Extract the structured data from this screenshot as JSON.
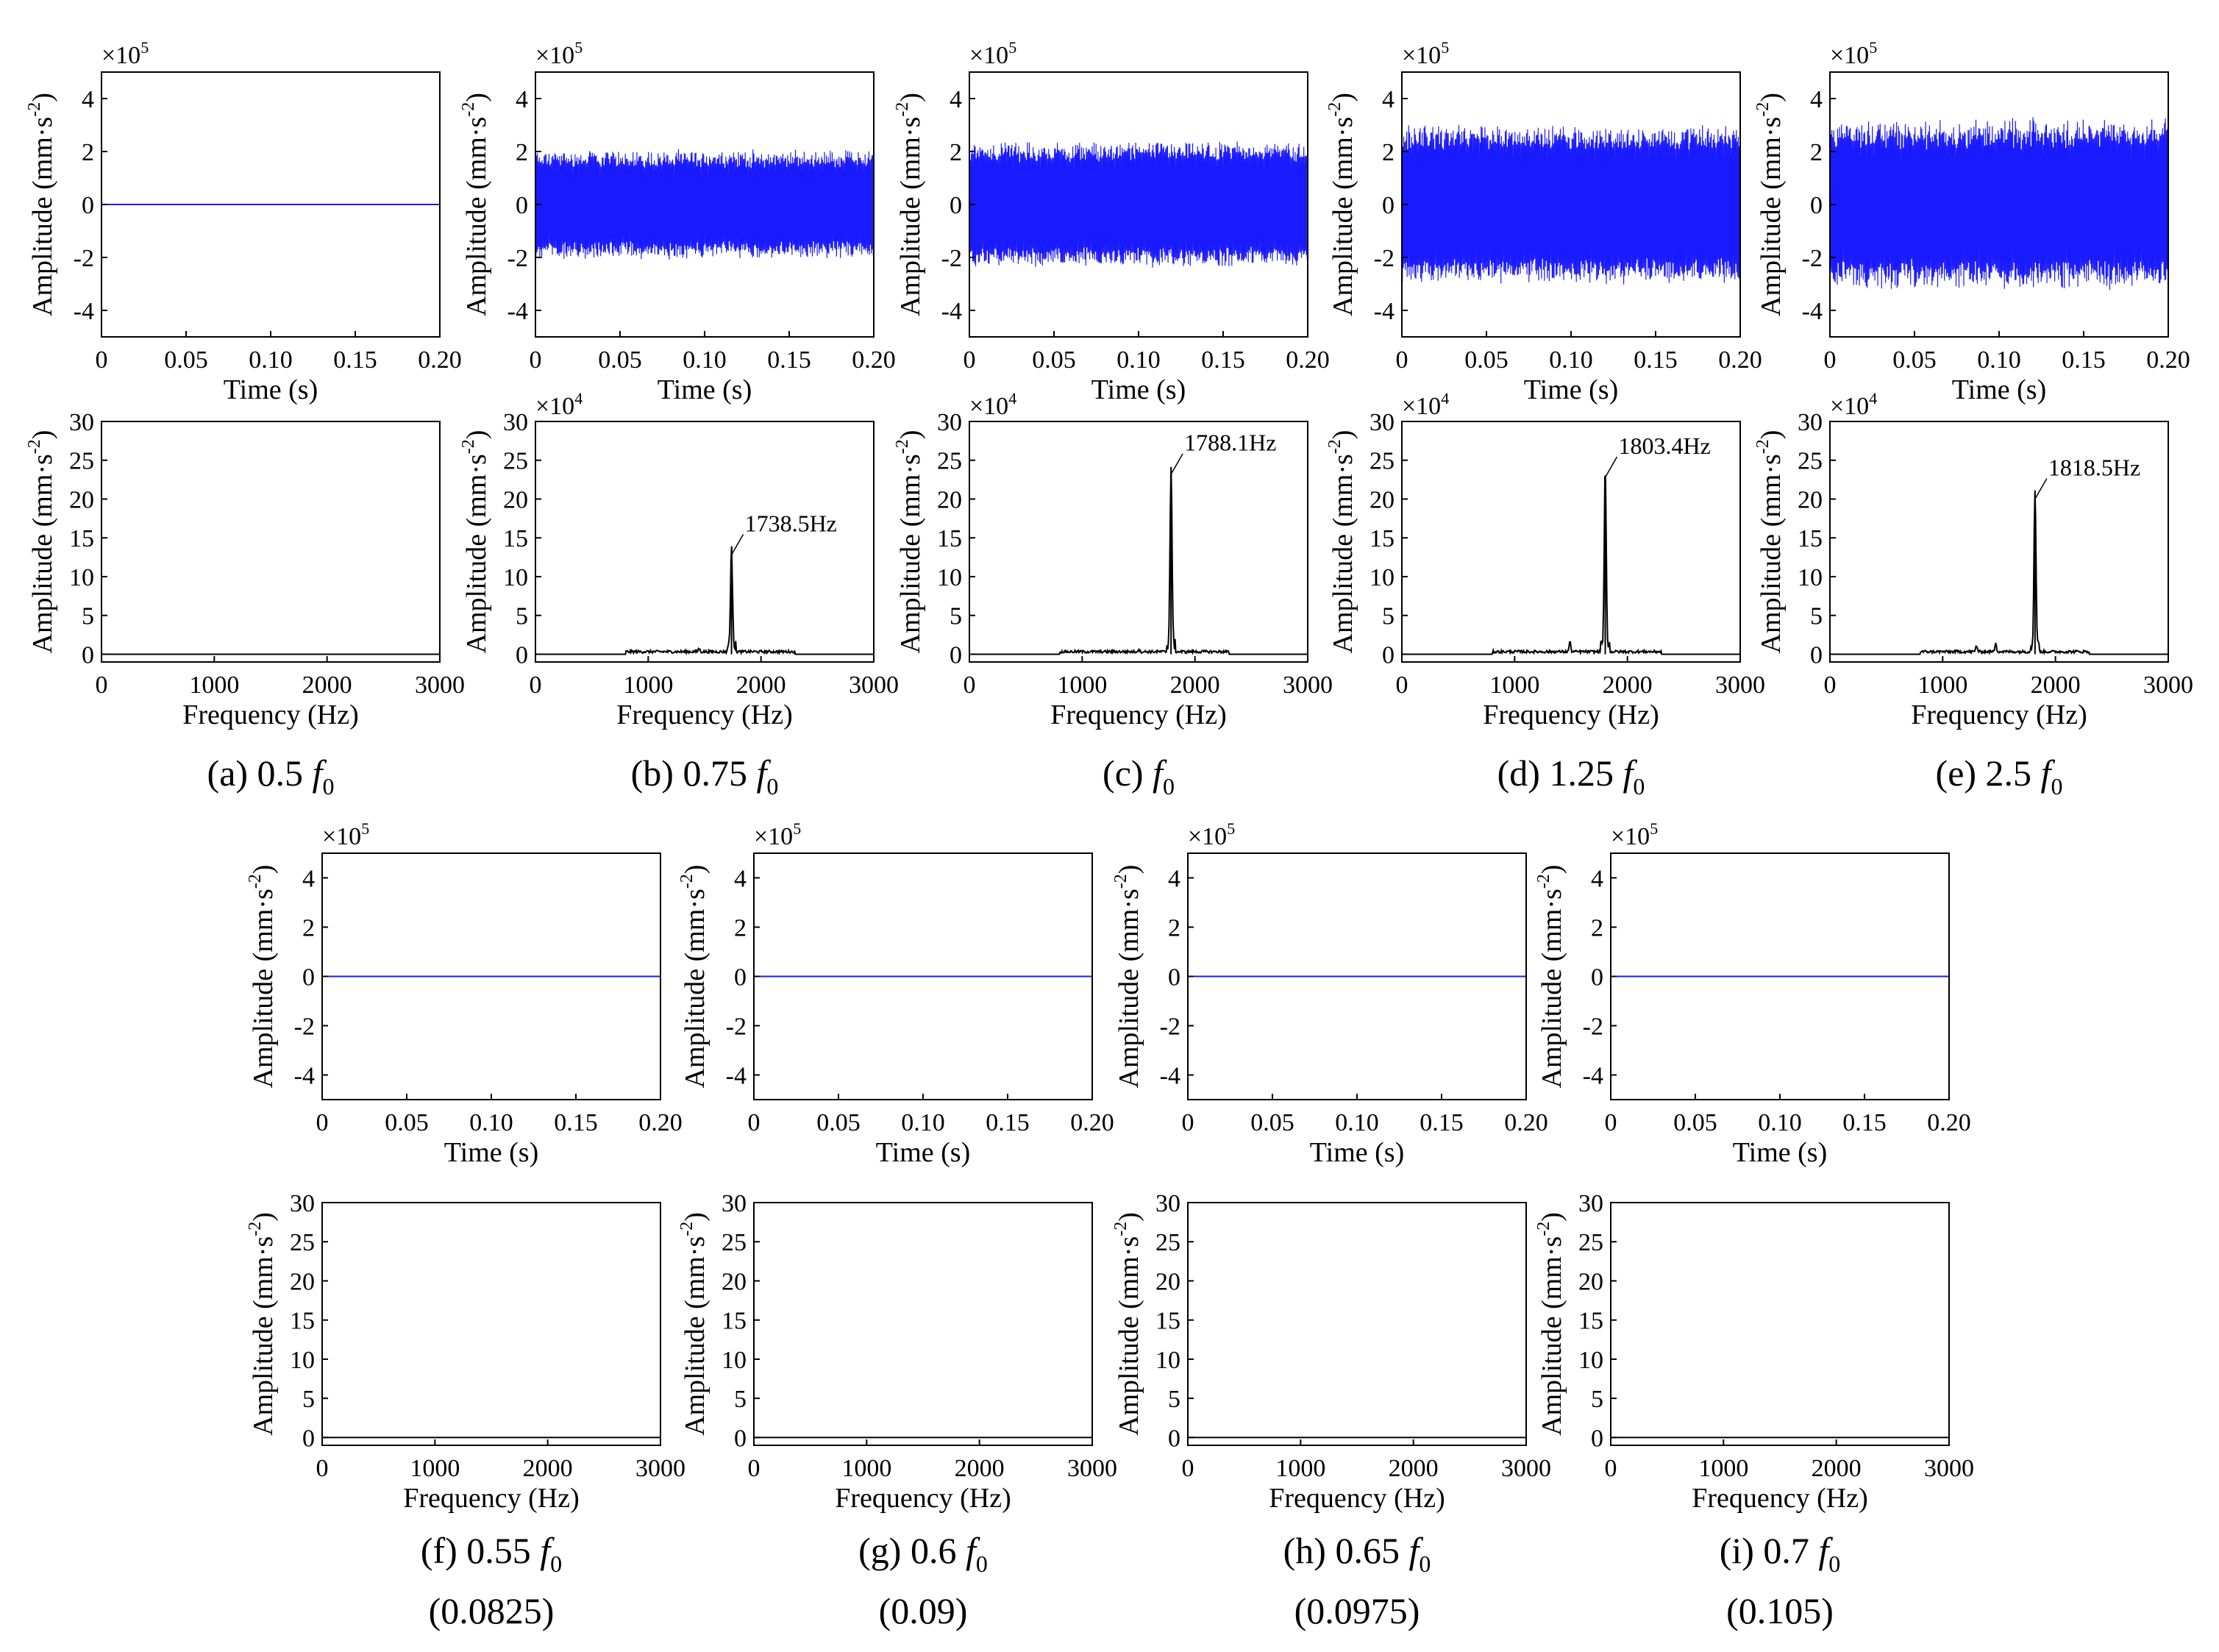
{
  "common": {
    "time_xlabel": "Time (s)",
    "freq_xlabel": "Frequency (Hz)",
    "ylabel_main": "Amplitude (mm·s",
    "ylabel_sup": "-2",
    "ylabel_close": ")",
    "time_multiplier": "×10",
    "time_exp": "5",
    "freq_multiplier": "×10",
    "freq_exp": "4",
    "time_xticks": [
      "0",
      "0.05",
      "0.10",
      "0.15",
      "0.20"
    ],
    "time_yticks": [
      "4",
      "2",
      "0",
      "-2",
      "-4"
    ],
    "freq_xticks": [
      "0",
      "1000",
      "2000",
      "3000"
    ],
    "freq_yticks": [
      "30",
      "25",
      "20",
      "15",
      "10",
      "5",
      "0"
    ]
  },
  "colors": {
    "time_signal": "#1a1aff",
    "spectrum": "#000000",
    "axes": "#000000"
  },
  "chart_data": [
    {
      "panel": "a",
      "type": "line",
      "signal": "time",
      "xlim": [
        0,
        0.2
      ],
      "ylim": [
        -5,
        5
      ],
      "amplitude": 0,
      "amp_noise": 0
    },
    {
      "panel": "a",
      "type": "line",
      "signal": "spectrum",
      "xlim": [
        0,
        3000
      ],
      "ylim": [
        -1,
        30
      ],
      "peaks": [],
      "show_multiplier": false
    },
    {
      "panel": "b",
      "type": "line",
      "signal": "time",
      "xlim": [
        0,
        0.2
      ],
      "ylim": [
        -5,
        5
      ],
      "amplitude": 1.9,
      "amp_noise": 0.3
    },
    {
      "panel": "b",
      "type": "line",
      "signal": "spectrum",
      "xlim": [
        0,
        3000
      ],
      "ylim": [
        -1,
        30
      ],
      "show_multiplier": true,
      "peaks": [
        {
          "x": 1738.5,
          "y": 12.8
        },
        {
          "x": 1450,
          "y": 0.4
        }
      ],
      "annotation": "1738.5Hz"
    },
    {
      "panel": "c",
      "type": "line",
      "signal": "time",
      "xlim": [
        0,
        0.2
      ],
      "ylim": [
        -5,
        5
      ],
      "amplitude": 2.2,
      "amp_noise": 0.3
    },
    {
      "panel": "c",
      "type": "line",
      "signal": "spectrum",
      "xlim": [
        0,
        3000
      ],
      "ylim": [
        -1,
        30
      ],
      "show_multiplier": true,
      "peaks": [
        {
          "x": 1788.1,
          "y": 23.2
        },
        {
          "x": 1500,
          "y": 0.3
        }
      ],
      "annotation": "1788.1Hz"
    },
    {
      "panel": "d",
      "type": "line",
      "signal": "time",
      "xlim": [
        0,
        0.2
      ],
      "ylim": [
        -5,
        5
      ],
      "amplitude": 2.8,
      "amp_noise": 0.35
    },
    {
      "panel": "d",
      "type": "line",
      "signal": "spectrum",
      "xlim": [
        0,
        3000
      ],
      "ylim": [
        -1,
        30
      ],
      "show_multiplier": true,
      "peaks": [
        {
          "x": 1803.4,
          "y": 22.8
        },
        {
          "x": 1490,
          "y": 1.3
        }
      ],
      "annotation": "1803.4Hz"
    },
    {
      "panel": "e",
      "type": "line",
      "signal": "time",
      "xlim": [
        0,
        0.2
      ],
      "ylim": [
        -5,
        5
      ],
      "amplitude": 2.9,
      "amp_noise": 0.6
    },
    {
      "panel": "e",
      "type": "line",
      "signal": "spectrum",
      "xlim": [
        0,
        3000
      ],
      "ylim": [
        -1,
        30
      ],
      "show_multiplier": true,
      "peaks": [
        {
          "x": 1818.5,
          "y": 20.0
        },
        {
          "x": 1300,
          "y": 0.8
        },
        {
          "x": 1470,
          "y": 1.2
        }
      ],
      "annotation": "1818.5Hz"
    },
    {
      "panel": "f",
      "type": "line",
      "signal": "time",
      "xlim": [
        0,
        0.2
      ],
      "ylim": [
        -5,
        5
      ],
      "amplitude": 0,
      "amp_noise": 0
    },
    {
      "panel": "f",
      "type": "line",
      "signal": "spectrum",
      "xlim": [
        0,
        3000
      ],
      "ylim": [
        -1,
        30
      ],
      "peaks": [],
      "show_multiplier": false
    },
    {
      "panel": "g",
      "type": "line",
      "signal": "time",
      "xlim": [
        0,
        0.2
      ],
      "ylim": [
        -5,
        5
      ],
      "amplitude": 0,
      "amp_noise": 0
    },
    {
      "panel": "g",
      "type": "line",
      "signal": "spectrum",
      "xlim": [
        0,
        3000
      ],
      "ylim": [
        -1,
        30
      ],
      "peaks": [],
      "show_multiplier": false
    },
    {
      "panel": "h",
      "type": "line",
      "signal": "time",
      "xlim": [
        0,
        0.2
      ],
      "ylim": [
        -5,
        5
      ],
      "amplitude": 0,
      "amp_noise": 0
    },
    {
      "panel": "h",
      "type": "line",
      "signal": "spectrum",
      "xlim": [
        0,
        3000
      ],
      "ylim": [
        -1,
        30
      ],
      "peaks": [],
      "show_multiplier": false
    },
    {
      "panel": "i",
      "type": "line",
      "signal": "time",
      "xlim": [
        0,
        0.2
      ],
      "ylim": [
        -5,
        5
      ],
      "amplitude": 0,
      "amp_noise": 0
    },
    {
      "panel": "i",
      "type": "line",
      "signal": "spectrum",
      "xlim": [
        0,
        3000
      ],
      "ylim": [
        -1,
        30
      ],
      "peaks": [],
      "show_multiplier": false
    }
  ],
  "captions": [
    {
      "panel": "a",
      "prefix": "(a) 0.5",
      "sub": "0",
      "second": ""
    },
    {
      "panel": "b",
      "prefix": "(b) 0.75",
      "sub": "0",
      "second": ""
    },
    {
      "panel": "c",
      "prefix": "(c) ",
      "sub": "0",
      "second": ""
    },
    {
      "panel": "d",
      "prefix": "(d) 1.25",
      "sub": "0",
      "second": ""
    },
    {
      "panel": "e",
      "prefix": "(e) 2.5",
      "sub": "0",
      "second": ""
    },
    {
      "panel": "f",
      "prefix": "(f) 0.55",
      "sub": "0",
      "second": "(0.0825)"
    },
    {
      "panel": "g",
      "prefix": "(g) 0.6",
      "sub": "0",
      "second": "(0.09)"
    },
    {
      "panel": "h",
      "prefix": "(h) 0.65",
      "sub": "0",
      "second": "(0.0975)"
    },
    {
      "panel": "i",
      "prefix": "(i) 0.7",
      "sub": "0",
      "second": "(0.105)"
    }
  ],
  "caption_symbol": "f"
}
